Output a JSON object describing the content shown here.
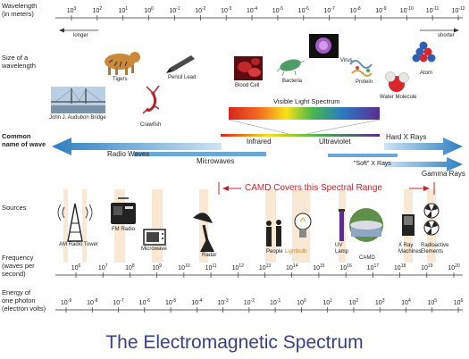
{
  "side_labels": {
    "wavelength": "Wavelength\n(in meters)",
    "size": "Size of a\nwavelength",
    "common": "Common\nname of wave",
    "sources": "Sources",
    "frequency": "Frequency\n(waves per\nsecond)",
    "energy": "Energy of\none photon\n(electron volts)"
  },
  "wavelength_exponents": [
    "3",
    "2",
    "1",
    "0",
    "-1",
    "-2",
    "-3",
    "-4",
    "-5",
    "-6",
    "-7",
    "-8",
    "-9",
    "-10",
    "-11",
    "-12"
  ],
  "frequency_exponents": [
    "6",
    "7",
    "8",
    "9",
    "10",
    "11",
    "12",
    "13",
    "14",
    "15",
    "16",
    "17",
    "18",
    "19",
    "20"
  ],
  "energy_exponents": [
    "-9",
    "-8",
    "-7",
    "-6",
    "-5",
    "-4",
    "-3",
    "-2",
    "-1",
    "0",
    "1",
    "2",
    "3",
    "4",
    "5",
    "6"
  ],
  "direction": {
    "longer": "longer",
    "shorter": "shorter"
  },
  "size_items": {
    "bridge": "John J. Audubon Bridge",
    "tigers": "Tigers",
    "crawfish": "Crawfish",
    "pencil": "Pencil Lead",
    "blood": "Blood Cell",
    "bacteria": "Bacteria",
    "virus": "Virus",
    "protein": "Protein",
    "water": "Water Molecule",
    "atom": "Atom"
  },
  "waves": {
    "visible": "Visible Light Spectrum",
    "radio": "Radio Waves",
    "infrared": "Infrared",
    "ultraviolet": "Ultraviolet",
    "hard_xray": "Hard X Rays",
    "microwaves": "Microwaves",
    "soft_xray": "\"Soft\" X Rays",
    "gamma": "Gamma Rays"
  },
  "camd_range": "CAMD Covers this Spectral Range",
  "sources": {
    "am": "AM Radio Tower",
    "fm": "FM Radio",
    "microwave": "Microwave",
    "radar": "Radar",
    "people": "People",
    "lightbulb": "Lightbulb",
    "uv": "UV\nLamp",
    "camd": "CAMD",
    "xray": "X Ray\nMachines",
    "radioactive": "Radioactive\nElements"
  },
  "title": "The Electromagnetic Spectrum",
  "colors": {
    "title": "#3b3f86",
    "arrow_blue": "#3f93cc",
    "camd_red": "#c0272d",
    "band": "#f7e4cc"
  }
}
